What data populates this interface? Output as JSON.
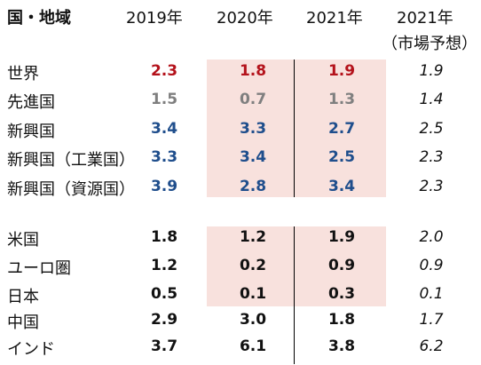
{
  "header": {
    "region": "国・地域",
    "col2019": "2019年",
    "col2020": "2020年",
    "col2021": "2021年",
    "col2021f": "2021年",
    "col2021f_note": "（市場予想）"
  },
  "colors": {
    "red": "#b4121b",
    "gray": "#7f7f7f",
    "blue": "#1f4e8c",
    "black": "#111111",
    "shade": "#f8e1dd"
  },
  "rows": [
    {
      "label": "世界",
      "v2019": "2.3",
      "v2020": "1.8",
      "v2021": "1.9",
      "f2021": "1.9",
      "color": "red"
    },
    {
      "label": "先進国",
      "v2019": "1.5",
      "v2020": "0.7",
      "v2021": "1.3",
      "f2021": "1.4",
      "color": "gray"
    },
    {
      "label": "新興国",
      "v2019": "3.4",
      "v2020": "3.3",
      "v2021": "2.7",
      "f2021": "2.5",
      "color": "blue"
    },
    {
      "label": "新興国（工業国）",
      "v2019": "3.3",
      "v2020": "3.4",
      "v2021": "2.5",
      "f2021": "2.3",
      "color": "blue"
    },
    {
      "label": "新興国（資源国）",
      "v2019": "3.9",
      "v2020": "2.8",
      "v2021": "3.4",
      "f2021": "2.3",
      "color": "blue"
    },
    {
      "label": "米国",
      "v2019": "1.8",
      "v2020": "1.2",
      "v2021": "1.9",
      "f2021": "2.0",
      "color": "black"
    },
    {
      "label": "ユーロ圏",
      "v2019": "1.2",
      "v2020": "0.2",
      "v2021": "0.9",
      "f2021": "0.9",
      "color": "black"
    },
    {
      "label": "日本",
      "v2019": "0.5",
      "v2020": "0.1",
      "v2021": "0.3",
      "f2021": "0.1",
      "color": "black"
    },
    {
      "label": "中国",
      "v2019": "2.9",
      "v2020": "3.0",
      "v2021": "1.8",
      "f2021": "1.7",
      "color": "black"
    },
    {
      "label": "インド",
      "v2019": "3.7",
      "v2020": "6.1",
      "v2021": "3.8",
      "f2021": "6.2",
      "color": "black"
    }
  ]
}
